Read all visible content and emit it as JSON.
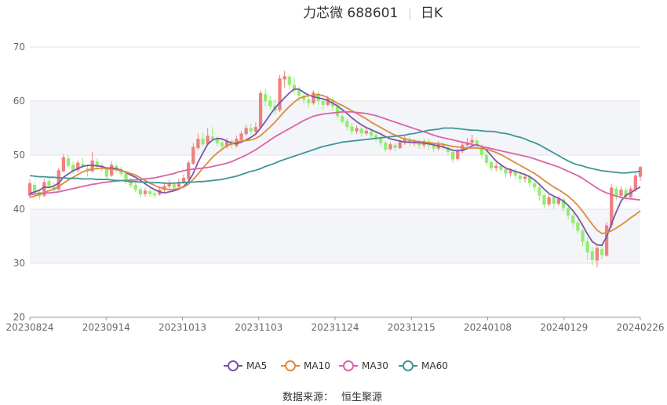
{
  "chart_data": {
    "type": "candlestick",
    "title": "力芯微 688601",
    "title_separator": "|",
    "subtitle": "日K",
    "ylim": [
      20,
      70
    ],
    "y_ticks": [
      "20",
      "30",
      "40",
      "50",
      "60",
      "70"
    ],
    "x_ticks": [
      "20230824",
      "20230914",
      "20231013",
      "20231103",
      "20231124",
      "20231215",
      "20240108",
      "20240129",
      "20240226"
    ],
    "grid": true,
    "legend_position": "bottom-center",
    "source_label": "数据来源：",
    "source_value": "恒生聚源",
    "colors": {
      "up": "#f08080",
      "down": "#90ee70",
      "ma5": "#7b55a8",
      "ma10": "#de8a3c",
      "ma30": "#d965a8",
      "ma60": "#3e9696",
      "grid": "#e3e3eb",
      "band": "#f4f5f9"
    },
    "candles": [
      [
        42.5,
        44.8,
        45.5,
        42.0
      ],
      [
        44.5,
        43.0,
        45.0,
        42.5
      ],
      [
        43.2,
        42.4,
        43.8,
        41.8
      ],
      [
        42.5,
        45.0,
        45.6,
        42.2
      ],
      [
        45.2,
        44.3,
        46.0,
        43.8
      ],
      [
        44.1,
        43.5,
        45.0,
        43.2
      ],
      [
        43.6,
        47.2,
        47.6,
        43.4
      ],
      [
        47.0,
        49.6,
        50.2,
        46.8
      ],
      [
        49.4,
        48.0,
        50.0,
        47.6
      ],
      [
        48.2,
        47.0,
        48.8,
        46.5
      ],
      [
        47.2,
        48.6,
        49.0,
        46.8
      ],
      [
        48.4,
        47.8,
        49.6,
        47.5
      ],
      [
        47.6,
        47.0,
        48.0,
        46.0
      ],
      [
        47.0,
        49.0,
        50.6,
        46.8
      ],
      [
        48.8,
        48.0,
        49.4,
        47.2
      ],
      [
        48.1,
        47.5,
        48.6,
        46.9
      ],
      [
        47.6,
        46.0,
        47.8,
        45.6
      ],
      [
        46.2,
        48.2,
        48.8,
        46.0
      ],
      [
        48.0,
        47.3,
        48.4,
        46.8
      ],
      [
        47.4,
        46.5,
        47.9,
        46.0
      ],
      [
        46.6,
        45.2,
        47.0,
        44.6
      ],
      [
        45.3,
        44.4,
        45.8,
        43.9
      ],
      [
        44.5,
        43.6,
        45.2,
        43.2
      ],
      [
        43.7,
        42.7,
        44.0,
        42.2
      ],
      [
        42.8,
        43.4,
        44.0,
        42.3
      ],
      [
        43.3,
        42.8,
        43.9,
        42.4
      ],
      [
        42.9,
        42.6,
        43.6,
        42.0
      ],
      [
        42.7,
        43.6,
        44.2,
        42.5
      ],
      [
        43.5,
        44.3,
        45.0,
        43.2
      ],
      [
        44.2,
        44.8,
        45.4,
        43.8
      ],
      [
        44.6,
        44.0,
        45.1,
        43.5
      ],
      [
        44.1,
        45.0,
        45.6,
        43.8
      ],
      [
        45.0,
        45.8,
        46.4,
        44.7
      ],
      [
        45.6,
        48.6,
        49.0,
        45.4
      ],
      [
        48.4,
        51.5,
        52.2,
        48.2
      ],
      [
        51.3,
        53.0,
        54.0,
        51.0
      ],
      [
        53.0,
        52.0,
        54.2,
        51.6
      ],
      [
        52.1,
        53.6,
        55.0,
        51.8
      ],
      [
        53.4,
        53.0,
        55.2,
        52.6
      ],
      [
        53.1,
        52.2,
        53.5,
        51.6
      ],
      [
        52.3,
        51.6,
        52.8,
        50.8
      ],
      [
        51.6,
        52.6,
        53.2,
        51.2
      ],
      [
        52.6,
        51.8,
        53.0,
        51.2
      ],
      [
        51.7,
        53.0,
        53.6,
        51.4
      ],
      [
        52.8,
        54.0,
        54.5,
        52.4
      ],
      [
        53.9,
        55.0,
        55.6,
        53.6
      ],
      [
        55.0,
        54.4,
        55.8,
        53.8
      ],
      [
        54.3,
        55.2,
        56.0,
        54.0
      ],
      [
        55.1,
        61.5,
        62.0,
        54.8
      ],
      [
        61.3,
        60.0,
        62.3,
        59.0
      ],
      [
        60.1,
        59.0,
        61.0,
        58.4
      ],
      [
        59.1,
        58.2,
        60.4,
        57.6
      ],
      [
        58.3,
        64.2,
        64.8,
        58.0
      ],
      [
        64.0,
        64.6,
        65.6,
        62.5
      ],
      [
        64.5,
        63.0,
        65.0,
        62.2
      ],
      [
        63.0,
        62.0,
        64.4,
        61.2
      ],
      [
        62.0,
        61.0,
        62.6,
        60.0
      ],
      [
        61.0,
        60.2,
        61.5,
        59.4
      ],
      [
        60.3,
        59.6,
        61.2,
        58.8
      ],
      [
        59.6,
        61.6,
        62.0,
        59.3
      ],
      [
        61.4,
        60.0,
        61.8,
        59.3
      ],
      [
        60.0,
        59.3,
        60.6,
        58.4
      ],
      [
        59.3,
        60.5,
        61.0,
        59.0
      ],
      [
        60.3,
        59.0,
        60.8,
        58.2
      ],
      [
        59.0,
        57.2,
        59.4,
        56.6
      ],
      [
        57.2,
        56.2,
        57.8,
        55.8
      ],
      [
        56.3,
        55.2,
        56.8,
        54.6
      ],
      [
        55.3,
        54.4,
        55.9,
        53.8
      ],
      [
        54.4,
        55.0,
        55.5,
        53.9
      ],
      [
        54.9,
        54.0,
        55.3,
        53.4
      ],
      [
        54.0,
        54.5,
        55.0,
        53.6
      ],
      [
        54.4,
        53.6,
        55.0,
        53.0
      ],
      [
        53.7,
        53.0,
        54.2,
        52.4
      ],
      [
        53.0,
        52.2,
        53.6,
        51.5
      ],
      [
        52.3,
        51.0,
        52.6,
        50.6
      ],
      [
        51.1,
        52.0,
        52.4,
        50.8
      ],
      [
        51.9,
        51.3,
        52.3,
        50.7
      ],
      [
        51.3,
        52.4,
        52.8,
        51.0
      ],
      [
        52.3,
        53.0,
        53.6,
        51.9
      ],
      [
        52.9,
        52.2,
        53.4,
        51.6
      ],
      [
        52.2,
        52.5,
        53.0,
        51.6
      ],
      [
        52.4,
        51.8,
        52.9,
        51.2
      ],
      [
        51.8,
        52.6,
        53.0,
        51.2
      ],
      [
        52.5,
        51.8,
        53.0,
        51.0
      ],
      [
        51.8,
        51.2,
        52.2,
        50.6
      ],
      [
        51.2,
        52.1,
        52.6,
        50.8
      ],
      [
        52.0,
        51.4,
        52.4,
        50.8
      ],
      [
        51.4,
        50.6,
        51.9,
        50.0
      ],
      [
        50.6,
        49.2,
        51.0,
        48.6
      ],
      [
        49.3,
        50.8,
        51.2,
        49.0
      ],
      [
        50.7,
        51.9,
        52.3,
        50.4
      ],
      [
        51.8,
        52.4,
        53.2,
        51.3
      ],
      [
        52.3,
        52.8,
        53.8,
        52.0
      ],
      [
        52.7,
        51.7,
        53.0,
        51.2
      ],
      [
        51.7,
        50.0,
        52.0,
        49.4
      ],
      [
        50.0,
        48.6,
        50.4,
        48.0
      ],
      [
        48.7,
        47.6,
        49.0,
        47.0
      ],
      [
        47.6,
        48.0,
        48.6,
        47.0
      ],
      [
        48.0,
        47.3,
        48.5,
        46.6
      ],
      [
        47.4,
        46.6,
        47.9,
        45.8
      ],
      [
        46.6,
        47.2,
        47.6,
        46.0
      ],
      [
        47.1,
        46.2,
        47.5,
        45.6
      ],
      [
        46.2,
        45.6,
        46.8,
        44.8
      ],
      [
        45.6,
        46.0,
        46.6,
        45.0
      ],
      [
        46.0,
        44.8,
        46.4,
        44.0
      ],
      [
        44.8,
        44.0,
        45.2,
        43.3
      ],
      [
        44.0,
        42.5,
        44.4,
        41.6
      ],
      [
        42.6,
        40.8,
        43.0,
        40.2
      ],
      [
        40.9,
        42.2,
        42.8,
        40.4
      ],
      [
        42.2,
        41.0,
        42.6,
        40.0
      ],
      [
        41.0,
        41.9,
        42.4,
        40.6
      ],
      [
        41.8,
        40.2,
        42.2,
        39.6
      ],
      [
        40.2,
        38.8,
        40.8,
        38.2
      ],
      [
        38.8,
        37.4,
        39.2,
        36.6
      ],
      [
        37.5,
        36.0,
        38.0,
        35.4
      ],
      [
        36.0,
        34.0,
        36.4,
        33.2
      ],
      [
        34.0,
        32.0,
        34.6,
        30.5
      ],
      [
        32.2,
        30.6,
        33.0,
        29.6
      ],
      [
        30.5,
        32.8,
        33.4,
        29.2
      ],
      [
        32.6,
        31.5,
        33.6,
        30.8
      ],
      [
        31.4,
        37.0,
        37.6,
        31.2
      ],
      [
        37.0,
        44.0,
        44.6,
        36.5
      ],
      [
        43.8,
        42.4,
        44.2,
        41.6
      ],
      [
        42.5,
        43.6,
        44.2,
        42.0
      ],
      [
        43.5,
        42.2,
        43.9,
        41.5
      ],
      [
        42.2,
        43.8,
        44.3,
        41.8
      ],
      [
        43.6,
        46.2,
        46.8,
        43.2
      ],
      [
        46.0,
        47.8,
        48.0,
        45.2
      ]
    ],
    "series": [
      {
        "name": "MA5",
        "values": [
          42.9,
          43.2,
          43.5,
          44.1,
          44.0,
          44.3,
          44.8,
          45.9,
          46.5,
          47.1,
          47.5,
          47.9,
          48.1,
          48.1,
          48.0,
          47.9,
          47.6,
          47.6,
          47.5,
          47.2,
          46.8,
          46.3,
          45.9,
          45.3,
          44.7,
          44.1,
          43.6,
          43.2,
          43.0,
          43.2,
          43.4,
          43.7,
          44.2,
          45.1,
          46.6,
          48.7,
          50.4,
          52.0,
          52.8,
          53.1,
          53.0,
          52.6,
          52.2,
          52.1,
          52.4,
          52.8,
          53.3,
          53.9,
          55.0,
          56.2,
          57.5,
          58.7,
          59.7,
          60.6,
          61.5,
          62.2,
          62.2,
          61.6,
          61.1,
          60.8,
          60.6,
          60.4,
          60.1,
          59.6,
          59.1,
          58.4,
          57.7,
          56.9,
          56.2,
          55.6,
          55.1,
          54.7,
          54.3,
          53.9,
          53.4,
          53.0,
          52.8,
          52.6,
          52.4,
          52.4,
          52.3,
          52.3,
          52.2,
          52.1,
          51.9,
          51.7,
          51.5,
          51.2,
          50.9,
          50.8,
          50.9,
          51.2,
          51.7,
          51.9,
          51.6,
          50.9,
          49.9,
          48.9,
          48.2,
          47.6,
          47.3,
          47.0,
          46.7,
          46.4,
          46.0,
          45.4,
          44.6,
          43.7,
          42.9,
          42.4,
          42.0,
          41.5,
          40.7,
          39.7,
          38.5,
          37.0,
          35.4,
          34.0,
          33.4,
          33.3,
          34.9,
          37.3,
          39.5,
          41.5,
          42.6,
          43.0,
          43.6,
          44.1
        ]
      },
      {
        "name": "MA10",
        "values": [
          42.2,
          42.4,
          42.7,
          43.1,
          43.4,
          43.7,
          44.2,
          44.8,
          45.4,
          45.9,
          46.4,
          46.9,
          47.2,
          47.4,
          47.5,
          47.6,
          47.5,
          47.4,
          47.3,
          47.1,
          46.9,
          46.6,
          46.3,
          45.8,
          45.3,
          44.8,
          44.4,
          44.0,
          43.8,
          43.6,
          43.7,
          43.8,
          44.1,
          44.6,
          45.5,
          46.5,
          47.6,
          48.6,
          49.6,
          50.4,
          51.1,
          51.7,
          52.1,
          52.4,
          52.6,
          52.7,
          52.8,
          53.1,
          53.6,
          54.4,
          55.2,
          56.1,
          57.1,
          58.1,
          59.0,
          59.8,
          60.5,
          60.8,
          61.0,
          61.1,
          61.2,
          61.0,
          60.6,
          60.1,
          59.6,
          59.2,
          58.7,
          58.2,
          57.7,
          57.2,
          56.7,
          56.1,
          55.6,
          55.1,
          54.6,
          54.1,
          53.7,
          53.3,
          53.0,
          52.8,
          52.6,
          52.5,
          52.4,
          52.3,
          52.2,
          52.1,
          52.0,
          51.8,
          51.6,
          51.5,
          51.4,
          51.3,
          51.3,
          51.3,
          51.2,
          51.1,
          50.8,
          50.5,
          50.1,
          49.6,
          49.1,
          48.6,
          48.1,
          47.6,
          47.1,
          46.6,
          46.0,
          45.3,
          44.7,
          44.1,
          43.6,
          43.0,
          42.4,
          41.6,
          40.7,
          39.6,
          38.4,
          37.2,
          36.1,
          35.5,
          35.6,
          36.0,
          36.5,
          37.1,
          37.7,
          38.4,
          39.0,
          39.7
        ]
      },
      {
        "name": "MA30",
        "values": [
          42.7,
          42.8,
          42.9,
          43.0,
          43.0,
          43.1,
          43.2,
          43.4,
          43.6,
          43.8,
          44.0,
          44.2,
          44.4,
          44.6,
          44.7,
          44.9,
          45.0,
          45.1,
          45.2,
          45.3,
          45.3,
          45.4,
          45.4,
          45.5,
          45.6,
          45.7,
          45.8,
          46.0,
          46.2,
          46.4,
          46.6,
          46.9,
          47.1,
          47.3,
          47.4,
          47.5,
          47.6,
          47.7,
          47.9,
          48.1,
          48.3,
          48.5,
          48.8,
          49.2,
          49.6,
          50.0,
          50.5,
          51.0,
          51.6,
          52.2,
          52.8,
          53.4,
          53.9,
          54.4,
          54.9,
          55.4,
          55.9,
          56.4,
          56.8,
          57.2,
          57.4,
          57.6,
          57.7,
          57.8,
          57.9,
          58.0,
          58.0,
          58.0,
          57.9,
          57.8,
          57.7,
          57.5,
          57.3,
          57.0,
          56.7,
          56.4,
          56.1,
          55.8,
          55.5,
          55.2,
          54.9,
          54.6,
          54.3,
          54.0,
          53.7,
          53.4,
          53.2,
          53.0,
          52.8,
          52.6,
          52.4,
          52.2,
          52.0,
          51.8,
          51.6,
          51.4,
          51.2,
          51.0,
          50.8,
          50.6,
          50.4,
          50.2,
          50.0,
          49.8,
          49.6,
          49.3,
          49.0,
          48.7,
          48.4,
          48.1,
          47.8,
          47.4,
          47.0,
          46.6,
          46.2,
          45.7,
          45.1,
          44.5,
          43.9,
          43.4,
          43.0,
          42.7,
          42.4,
          42.2,
          42.0,
          41.9,
          41.8,
          41.7
        ]
      },
      {
        "name": "MA60",
        "values": [
          46.2,
          46.1,
          46.0,
          46.0,
          45.9,
          45.9,
          45.8,
          45.8,
          45.7,
          45.7,
          45.7,
          45.6,
          45.6,
          45.6,
          45.5,
          45.5,
          45.5,
          45.4,
          45.3,
          45.3,
          45.2,
          45.1,
          45.1,
          45.0,
          45.0,
          44.9,
          44.9,
          44.9,
          44.8,
          44.8,
          44.8,
          44.9,
          44.9,
          45.0,
          45.0,
          45.1,
          45.1,
          45.2,
          45.3,
          45.4,
          45.5,
          45.7,
          45.9,
          46.1,
          46.4,
          46.7,
          47.0,
          47.2,
          47.5,
          47.9,
          48.2,
          48.5,
          48.9,
          49.2,
          49.5,
          49.8,
          50.1,
          50.4,
          50.7,
          51.0,
          51.3,
          51.6,
          51.8,
          52.0,
          52.2,
          52.4,
          52.5,
          52.6,
          52.7,
          52.8,
          52.9,
          53.0,
          53.1,
          53.2,
          53.3,
          53.4,
          53.5,
          53.6,
          53.7,
          53.9,
          54.0,
          54.2,
          54.4,
          54.6,
          54.7,
          54.8,
          55.0,
          55.0,
          55.0,
          54.9,
          54.8,
          54.7,
          54.6,
          54.6,
          54.5,
          54.4,
          54.4,
          54.3,
          54.1,
          54.0,
          53.8,
          53.5,
          53.3,
          53.0,
          52.6,
          52.3,
          51.9,
          51.4,
          50.9,
          50.4,
          49.9,
          49.4,
          48.9,
          48.5,
          48.2,
          48.0,
          47.7,
          47.5,
          47.3,
          47.1,
          47.0,
          46.9,
          46.8,
          46.7,
          46.7,
          46.8,
          46.9,
          47.0
        ]
      }
    ]
  }
}
